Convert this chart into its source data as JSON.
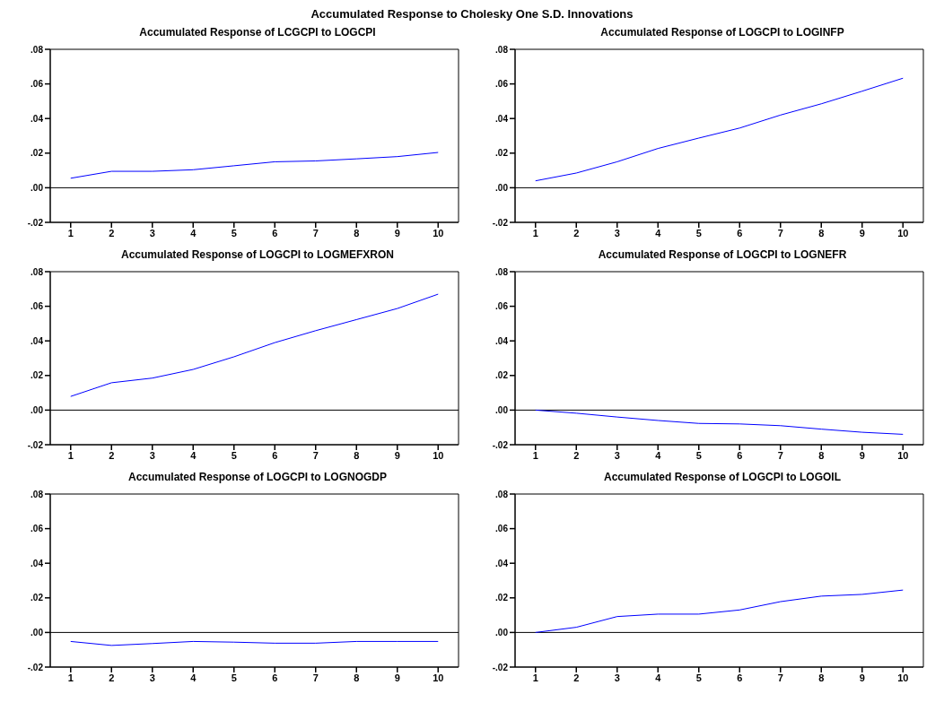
{
  "chart_data": [
    {
      "type": "line",
      "title": "Accumulated Response of LCGCPI to LOGCPI",
      "categories": [
        "1",
        "2",
        "3",
        "4",
        "5",
        "6",
        "7",
        "8",
        "9",
        "10"
      ],
      "series": [
        {
          "color": "#0000ff",
          "values": [
            0.0055,
            0.0095,
            0.0095,
            0.0104,
            0.0127,
            0.015,
            0.0155,
            0.0167,
            0.018,
            0.0204
          ]
        }
      ],
      "ylim": [
        -0.02,
        0.08
      ],
      "yticks": [
        {
          "value": -0.02,
          "label": "-.02"
        },
        {
          "value": 0,
          "label": ".00"
        },
        {
          "value": 0.02,
          "label": ".02"
        },
        {
          "value": 0.04,
          "label": ".04"
        },
        {
          "value": 0.06,
          "label": ".06"
        },
        {
          "value": 0.08,
          "label": ".08"
        }
      ],
      "ref_lines": [
        {
          "axis": "y",
          "value": 0,
          "color": "#000000"
        }
      ],
      "grid": false,
      "legend": false
    },
    {
      "type": "line",
      "title": "Accumulated Response of LOGCPI to LOGINFP",
      "categories": [
        "1",
        "2",
        "3",
        "4",
        "5",
        "6",
        "7",
        "8",
        "9",
        "10"
      ],
      "series": [
        {
          "color": "#0000ff",
          "values": [
            0.004,
            0.0085,
            0.015,
            0.0227,
            0.0287,
            0.0345,
            0.042,
            0.0485,
            0.0558,
            0.0633
          ]
        }
      ],
      "ylim": [
        -0.02,
        0.08
      ],
      "yticks": [
        {
          "value": -0.02,
          "label": "-.02"
        },
        {
          "value": 0,
          "label": ".00"
        },
        {
          "value": 0.02,
          "label": ".02"
        },
        {
          "value": 0.04,
          "label": ".04"
        },
        {
          "value": 0.06,
          "label": ".06"
        },
        {
          "value": 0.08,
          "label": ".08"
        }
      ],
      "ref_lines": [
        {
          "axis": "y",
          "value": 0,
          "color": "#000000"
        }
      ],
      "grid": false,
      "legend": false
    },
    {
      "type": "line",
      "title": "Accumulated Response of LOGCPI to LOGMEFXRON",
      "categories": [
        "1",
        "2",
        "3",
        "4",
        "5",
        "6",
        "7",
        "8",
        "9",
        "10"
      ],
      "series": [
        {
          "color": "#0000ff",
          "values": [
            0.0079,
            0.0158,
            0.0185,
            0.0235,
            0.0308,
            0.039,
            0.0459,
            0.0523,
            0.0587,
            0.067
          ]
        }
      ],
      "ylim": [
        -0.02,
        0.08
      ],
      "yticks": [
        {
          "value": -0.02,
          "label": "-.02"
        },
        {
          "value": 0,
          "label": ".00"
        },
        {
          "value": 0.02,
          "label": ".02"
        },
        {
          "value": 0.04,
          "label": ".04"
        },
        {
          "value": 0.06,
          "label": ".06"
        },
        {
          "value": 0.08,
          "label": ".08"
        }
      ],
      "ref_lines": [
        {
          "axis": "y",
          "value": 0,
          "color": "#000000"
        }
      ],
      "grid": false,
      "legend": false
    },
    {
      "type": "line",
      "title": "Accumulated Response of LOGCPI to LOGNEFR",
      "categories": [
        "1",
        "2",
        "3",
        "4",
        "5",
        "6",
        "7",
        "8",
        "9",
        "10"
      ],
      "series": [
        {
          "color": "#0000ff",
          "values": [
            0,
            -0.0018,
            -0.004,
            -0.006,
            -0.0077,
            -0.008,
            -0.009,
            -0.011,
            -0.0128,
            -0.014
          ]
        }
      ],
      "ylim": [
        -0.02,
        0.08
      ],
      "yticks": [
        {
          "value": -0.02,
          "label": "-.02"
        },
        {
          "value": 0,
          "label": ".00"
        },
        {
          "value": 0.02,
          "label": ".02"
        },
        {
          "value": 0.04,
          "label": ".04"
        },
        {
          "value": 0.06,
          "label": ".06"
        },
        {
          "value": 0.08,
          "label": ".08"
        }
      ],
      "ref_lines": [
        {
          "axis": "y",
          "value": 0,
          "color": "#000000"
        }
      ],
      "grid": false,
      "legend": false
    },
    {
      "type": "line",
      "title": "Accumulated Response of LOGCPI to LOGNOGDP",
      "categories": [
        "1",
        "2",
        "3",
        "4",
        "5",
        "6",
        "7",
        "8",
        "9",
        "10"
      ],
      "series": [
        {
          "color": "#0000ff",
          "values": [
            -0.0052,
            -0.0075,
            -0.0064,
            -0.0052,
            -0.0056,
            -0.0062,
            -0.0062,
            -0.0052,
            -0.0052,
            -0.0052
          ]
        }
      ],
      "ylim": [
        -0.02,
        0.08
      ],
      "yticks": [
        {
          "value": -0.02,
          "label": "-.02"
        },
        {
          "value": 0,
          "label": ".00"
        },
        {
          "value": 0.02,
          "label": ".02"
        },
        {
          "value": 0.04,
          "label": ".04"
        },
        {
          "value": 0.06,
          "label": ".06"
        },
        {
          "value": 0.08,
          "label": ".08"
        }
      ],
      "ref_lines": [
        {
          "axis": "y",
          "value": 0,
          "color": "#000000"
        }
      ],
      "grid": false,
      "legend": false
    },
    {
      "type": "line",
      "title": "Accumulated Response of LOGCPI to LOGOIL",
      "categories": [
        "1",
        "2",
        "3",
        "4",
        "5",
        "6",
        "7",
        "8",
        "9",
        "10"
      ],
      "series": [
        {
          "color": "#0000ff",
          "values": [
            0,
            0.003,
            0.0092,
            0.0106,
            0.0106,
            0.013,
            0.0178,
            0.021,
            0.022,
            0.0245
          ]
        }
      ],
      "ylim": [
        -0.02,
        0.08
      ],
      "yticks": [
        {
          "value": -0.02,
          "label": "-.02"
        },
        {
          "value": 0,
          "label": ".00"
        },
        {
          "value": 0.02,
          "label": ".02"
        },
        {
          "value": 0.04,
          "label": ".04"
        },
        {
          "value": 0.06,
          "label": ".06"
        },
        {
          "value": 0.08,
          "label": ".08"
        }
      ],
      "ref_lines": [
        {
          "axis": "y",
          "value": 0,
          "color": "#000000"
        }
      ],
      "grid": false,
      "legend": false,
      "annotations": [
        "Accumulated Response to Cholesky One S.D. Innovations"
      ]
    }
  ]
}
